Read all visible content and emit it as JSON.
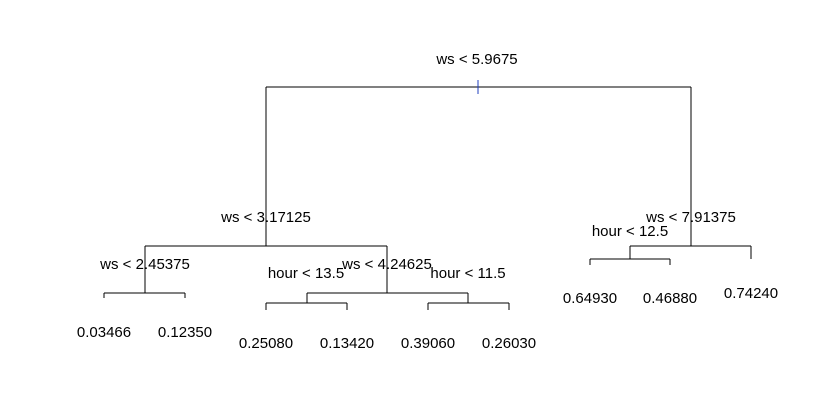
{
  "tree": {
    "splits": {
      "root": "ws < 5.9675",
      "left": "ws < 3.17125",
      "right": "ws < 7.91375",
      "left_left": "ws < 2.45375",
      "left_right": "ws < 4.24625",
      "left_right_left": "hour < 13.5",
      "left_right_right": "hour < 11.5",
      "right_left": "hour < 12.5"
    },
    "leaves": {
      "l1": "0.03466",
      "l2": "0.12350",
      "l3": "0.25080",
      "l4": "0.13420",
      "l5": "0.39060",
      "l6": "0.26030",
      "l7": "0.64930",
      "l8": "0.46880",
      "l9": "0.74240"
    },
    "colors": {
      "lines": "#000000",
      "root_tick": "#1f3fbf"
    }
  }
}
